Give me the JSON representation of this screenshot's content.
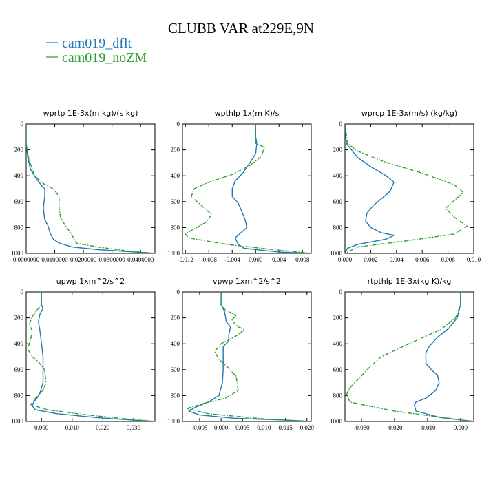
{
  "figure": {
    "title": "CLUBB VAR at229E,9N",
    "legend": [
      {
        "name": "cam019_dflt",
        "color": "#1f77b4"
      },
      {
        "name": "cam019_noZM",
        "color": "#2ca02c"
      }
    ]
  },
  "chart_data": [
    {
      "type": "line",
      "title": "wprtp  1E-3x(m kg)/(s kg)",
      "xlim": [
        0,
        0.045
      ],
      "ylim": [
        1000,
        0
      ],
      "xticks": [
        0,
        0.01,
        0.02,
        0.03,
        0.04
      ],
      "xtick_labels": [
        "0.0000000",
        "0.0100000",
        "0.0200000",
        "0.0300000",
        "0.0400000"
      ],
      "yticks": [
        0,
        200,
        400,
        600,
        800,
        1000
      ],
      "series": [
        {
          "name": "cam019_dflt",
          "color": "#1f77b4",
          "dash": "solid",
          "x": [
            0,
            0,
            0.0005,
            0.0015,
            0.0035,
            0.0055,
            0.0065,
            0.0065,
            0.006,
            0.0065,
            0.0075,
            0.0085,
            0.0095,
            0.0115,
            0.016,
            0.025,
            0.038,
            0.045
          ],
          "y": [
            0,
            150,
            250,
            350,
            420,
            480,
            500,
            560,
            650,
            740,
            780,
            850,
            890,
            920,
            950,
            970,
            990,
            1000
          ]
        },
        {
          "name": "cam019_noZM",
          "color": "#2ca02c",
          "dash": "dash",
          "x": [
            0,
            0,
            0.001,
            0.003,
            0.006,
            0.0095,
            0.0115,
            0.0115,
            0.012,
            0.0135,
            0.0155,
            0.0165,
            0.0175,
            0.025,
            0.035,
            0.045
          ],
          "y": [
            0,
            150,
            280,
            400,
            460,
            500,
            560,
            650,
            720,
            780,
            840,
            880,
            920,
            950,
            980,
            1000
          ]
        }
      ]
    },
    {
      "type": "line",
      "title": "wpthlp  1x(m K)/s",
      "xlim": [
        -0.0125,
        0.0095
      ],
      "ylim": [
        1000,
        0
      ],
      "xticks": [
        -0.012,
        -0.008,
        -0.004,
        0,
        0.004,
        0.008
      ],
      "xtick_labels": [
        "-0.012",
        "-0.008",
        "-0.004",
        "0.000",
        "0.004",
        "0.008"
      ],
      "yticks": [
        0,
        200,
        400,
        600,
        800,
        1000
      ],
      "series": [
        {
          "name": "cam019_dflt",
          "color": "#1f77b4",
          "dash": "solid",
          "x": [
            0,
            0,
            0.0002,
            0,
            -0.001,
            -0.0022,
            -0.0035,
            -0.004,
            -0.004,
            -0.003,
            -0.0025,
            -0.0018,
            -0.0015,
            -0.0025,
            -0.0035,
            -0.003,
            -0.002,
            0.004,
            0.0095
          ],
          "y": [
            0,
            100,
            150,
            230,
            300,
            380,
            440,
            500,
            560,
            610,
            660,
            740,
            800,
            840,
            880,
            930,
            960,
            990,
            1000
          ]
        },
        {
          "name": "cam019_noZM",
          "color": "#2ca02c",
          "dash": "dash",
          "x": [
            0,
            0,
            0.0015,
            0.001,
            -0.001,
            -0.004,
            -0.008,
            -0.0105,
            -0.011,
            -0.0095,
            -0.0075,
            -0.0085,
            -0.0105,
            -0.012,
            -0.0115,
            -0.005,
            0.003,
            0.0095
          ],
          "y": [
            0,
            150,
            180,
            250,
            320,
            390,
            450,
            500,
            560,
            620,
            700,
            760,
            810,
            850,
            880,
            930,
            970,
            1000
          ]
        }
      ]
    },
    {
      "type": "line",
      "title": "wprcp  1E-3x(m/s) (kg/kg)",
      "xlim": [
        0,
        0.01
      ],
      "ylim": [
        1000,
        0
      ],
      "xticks": [
        0,
        0.002,
        0.004,
        0.006,
        0.008,
        0.01
      ],
      "xtick_labels": [
        "0.000",
        "0.002",
        "0.004",
        "0.006",
        "0.008",
        "0.010"
      ],
      "yticks": [
        0,
        200,
        400,
        600,
        800,
        1000
      ],
      "series": [
        {
          "name": "cam019_dflt",
          "color": "#1f77b4",
          "dash": "solid",
          "x": [
            0,
            0.0001,
            0.0005,
            0.001,
            0.002,
            0.0032,
            0.0038,
            0.0035,
            0.0028,
            0.0022,
            0.0017,
            0.0016,
            0.002,
            0.0028,
            0.0038,
            0.0032,
            0.001,
            0.0002,
            0
          ],
          "y": [
            0,
            150,
            200,
            260,
            330,
            400,
            450,
            520,
            580,
            630,
            690,
            750,
            800,
            840,
            860,
            890,
            930,
            960,
            1000
          ]
        },
        {
          "name": "cam019_noZM",
          "color": "#2ca02c",
          "dash": "dash",
          "x": [
            0,
            0.0002,
            0.001,
            0.003,
            0.006,
            0.0085,
            0.0092,
            0.0085,
            0.0078,
            0.0085,
            0.0095,
            0.0085,
            0.005,
            0.001,
            0
          ],
          "y": [
            0,
            150,
            210,
            290,
            380,
            470,
            530,
            590,
            650,
            720,
            790,
            850,
            900,
            950,
            1000
          ]
        }
      ]
    },
    {
      "type": "line",
      "title": "upwp  1xm^2/s^2",
      "xlim": [
        -0.005,
        0.037
      ],
      "ylim": [
        1000,
        0
      ],
      "xticks": [
        0,
        0.01,
        0.02,
        0.03
      ],
      "xtick_labels": [
        "0.000",
        "0.010",
        "0.020",
        "0.030"
      ],
      "yticks": [
        0,
        200,
        400,
        600,
        800,
        1000
      ],
      "series": [
        {
          "name": "cam019_dflt",
          "color": "#1f77b4",
          "dash": "solid",
          "x": [
            0,
            0,
            0.0005,
            -0.0005,
            -0.001,
            -0.0005,
            0,
            0.0005,
            0.0005,
            0.0005,
            -0.0005,
            -0.0015,
            -0.0025,
            -0.003,
            -0.002,
            0.005,
            0.018,
            0.03,
            0.037
          ],
          "y": [
            0,
            100,
            130,
            170,
            230,
            300,
            400,
            500,
            600,
            700,
            780,
            820,
            850,
            880,
            910,
            940,
            970,
            990,
            1000
          ]
        },
        {
          "name": "cam019_noZM",
          "color": "#2ca02c",
          "dash": "dash",
          "x": [
            0,
            0,
            -0.0015,
            -0.003,
            -0.004,
            -0.003,
            -0.0035,
            -0.0045,
            -0.003,
            -0.001,
            0.001,
            0.0015,
            0.0005,
            -0.002,
            -0.0035,
            0.002,
            0.015,
            0.03,
            0.037
          ],
          "y": [
            0,
            100,
            140,
            190,
            250,
            300,
            360,
            440,
            500,
            540,
            600,
            700,
            760,
            820,
            870,
            910,
            950,
            985,
            1000
          ]
        }
      ]
    },
    {
      "type": "line",
      "title": "vpwp  1xm^2/s^2",
      "xlim": [
        -0.009,
        0.021
      ],
      "ylim": [
        1000,
        0
      ],
      "xticks": [
        -0.005,
        0,
        0.005,
        0.01,
        0.015,
        0.02
      ],
      "xtick_labels": [
        "-0.005",
        "0.000",
        "0.005",
        "0.010",
        "0.015",
        "0.020"
      ],
      "yticks": [
        0,
        200,
        400,
        600,
        800,
        1000
      ],
      "series": [
        {
          "name": "cam019_dflt",
          "color": "#1f77b4",
          "dash": "solid",
          "x": [
            0,
            0,
            0.0008,
            0.0012,
            0.0022,
            0.0018,
            0.0018,
            0.0005,
            0.0005,
            0.0005,
            0.0003,
            -0.0005,
            -0.003,
            -0.006,
            -0.0075,
            -0.005,
            0.003,
            0.015,
            0.021
          ],
          "y": [
            0,
            100,
            150,
            230,
            270,
            330,
            380,
            420,
            500,
            600,
            700,
            800,
            850,
            890,
            920,
            950,
            975,
            990,
            1000
          ]
        },
        {
          "name": "cam019_noZM",
          "color": "#2ca02c",
          "dash": "dash",
          "x": [
            0,
            0,
            0.001,
            0.0035,
            0.0025,
            0.004,
            0.0055,
            0.0035,
            0,
            -0.0015,
            -0.0005,
            0.0015,
            0.0035,
            0.004,
            0.001,
            -0.004,
            -0.008,
            -0.003,
            0.01,
            0.021
          ],
          "y": [
            0,
            100,
            140,
            180,
            220,
            270,
            290,
            340,
            400,
            460,
            520,
            580,
            650,
            760,
            820,
            860,
            900,
            940,
            980,
            1000
          ]
        }
      ]
    },
    {
      "type": "line",
      "title": "rtpthlp  1E-3x(kg K)/kg",
      "xlim": [
        -0.035,
        0.004
      ],
      "ylim": [
        1000,
        0
      ],
      "xticks": [
        -0.03,
        -0.02,
        -0.01,
        0
      ],
      "xtick_labels": [
        "-0.030",
        "-0.020",
        "-0.010",
        "0.000"
      ],
      "yticks": [
        0,
        200,
        400,
        600,
        800,
        1000
      ],
      "series": [
        {
          "name": "cam019_dflt",
          "color": "#1f77b4",
          "dash": "solid",
          "x": [
            0,
            0,
            -0.001,
            -0.0035,
            -0.007,
            -0.0095,
            -0.0105,
            -0.0105,
            -0.0085,
            -0.007,
            -0.0065,
            -0.0075,
            -0.0105,
            -0.0135,
            -0.014,
            -0.0135,
            -0.006,
            0.004
          ],
          "y": [
            0,
            100,
            200,
            280,
            350,
            420,
            470,
            550,
            610,
            640,
            700,
            760,
            820,
            850,
            870,
            920,
            970,
            1000
          ]
        },
        {
          "name": "cam019_noZM",
          "color": "#2ca02c",
          "dash": "dash",
          "x": [
            0,
            0,
            -0.0015,
            -0.006,
            -0.013,
            -0.019,
            -0.024,
            -0.0275,
            -0.0305,
            -0.0335,
            -0.0345,
            -0.0335,
            -0.02,
            -0.005,
            0.004
          ],
          "y": [
            0,
            100,
            200,
            290,
            370,
            440,
            500,
            580,
            660,
            740,
            790,
            850,
            920,
            970,
            1000
          ]
        }
      ]
    }
  ]
}
